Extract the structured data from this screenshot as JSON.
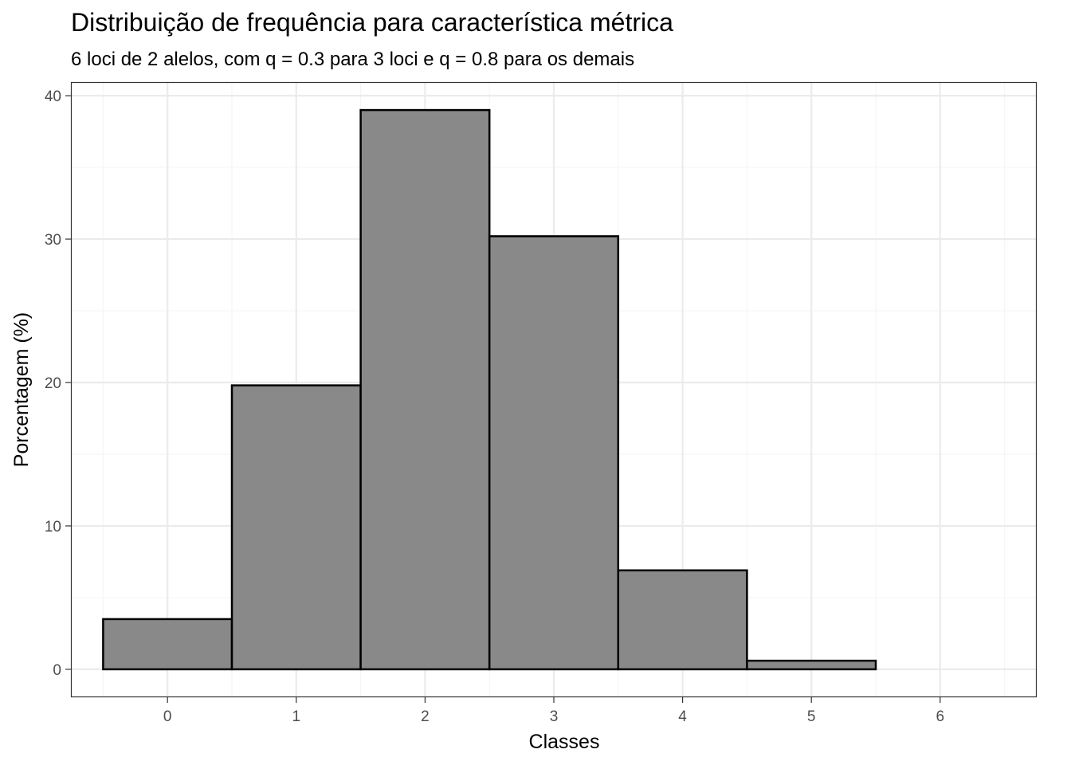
{
  "chart_data": {
    "type": "bar",
    "title": "Distribuição de frequência para característica métrica",
    "subtitle": "6 loci de 2 alelos, com q = 0.3 para 3 loci e q = 0.8 para os demais",
    "xlabel": "Classes",
    "ylabel": "Porcentagem (%)",
    "categories": [
      "0",
      "1",
      "2",
      "3",
      "4",
      "5",
      "6"
    ],
    "values": [
      3.5,
      19.8,
      39.0,
      30.2,
      6.9,
      0.6,
      0.0
    ],
    "x_ticks": [
      "0",
      "1",
      "2",
      "3",
      "4",
      "5",
      "6"
    ],
    "y_ticks": [
      "0",
      "10",
      "20",
      "30",
      "40"
    ],
    "xlim": [
      -0.75,
      6.75
    ],
    "ylim": [
      -1.95,
      40.95
    ],
    "grid": true,
    "bar_width": 1,
    "colors": {
      "bar_fill": "#898989",
      "bar_stroke": "#000000",
      "grid_major": "#ebebeb",
      "grid_minor": "#f5f5f5",
      "panel_border": "#333333",
      "tick_text": "#4d4d4d"
    }
  }
}
